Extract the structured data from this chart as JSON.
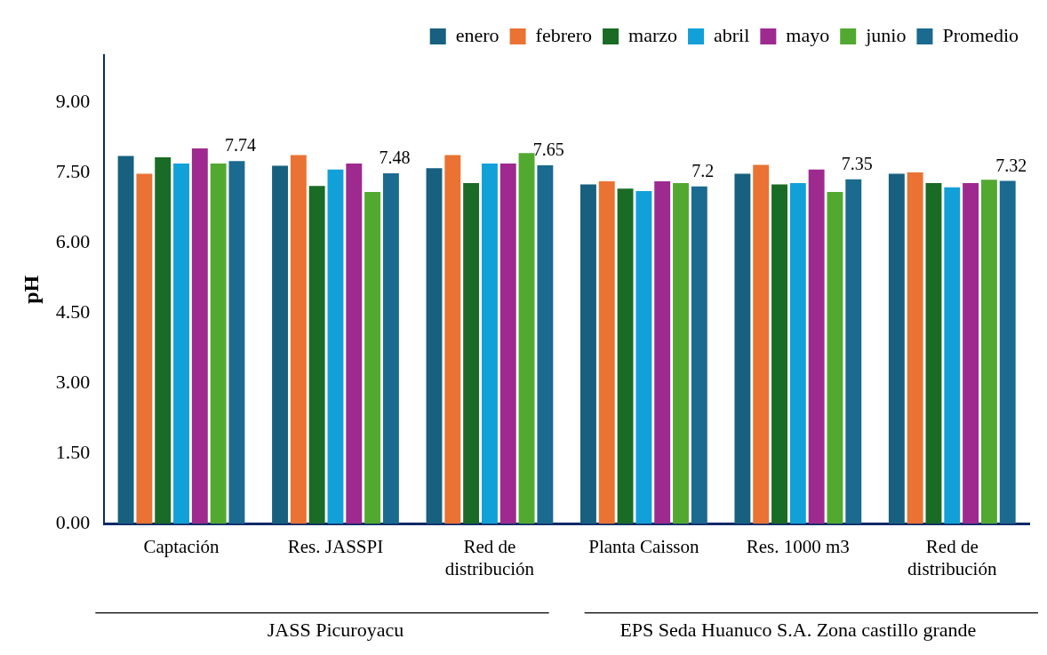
{
  "chart_data": {
    "type": "bar",
    "ylabel": "pH",
    "categories": [
      "Captación",
      "Res. JASSPI",
      "Red de distribución",
      "Planta Caisson",
      "Res. 1000 m3",
      "Red de distribución"
    ],
    "series": [
      {
        "name": "enero",
        "color": "#17607f",
        "values": [
          7.85,
          7.64,
          7.59,
          7.24,
          7.47,
          7.47
        ]
      },
      {
        "name": "febrero",
        "color": "#ea7233",
        "values": [
          7.47,
          7.87,
          7.87,
          7.31,
          7.66,
          7.5
        ]
      },
      {
        "name": "marzo",
        "color": "#1a6b25",
        "values": [
          7.82,
          7.21,
          7.27,
          7.15,
          7.24,
          7.27
        ]
      },
      {
        "name": "abril",
        "color": "#12a0d8",
        "values": [
          7.69,
          7.56,
          7.69,
          7.1,
          7.27,
          7.18
        ]
      },
      {
        "name": "mayo",
        "color": "#9e2a90",
        "values": [
          8.01,
          7.69,
          7.69,
          7.31,
          7.56,
          7.27
        ]
      },
      {
        "name": "junio",
        "color": "#52a930",
        "values": [
          7.69,
          7.08,
          7.91,
          7.27,
          7.08,
          7.34
        ]
      },
      {
        "name": "Promedio",
        "color": "#1b6a8f",
        "values": [
          7.74,
          7.48,
          7.65,
          7.2,
          7.35,
          7.32
        ],
        "value_labels": [
          "7.74",
          "7.48",
          "7.65",
          "7.2",
          "7.35",
          "7.32"
        ]
      }
    ],
    "ylim": [
      0,
      10
    ],
    "yticks": [
      {
        "value": 0,
        "label": "0.00"
      },
      {
        "value": 1.5,
        "label": "1.50"
      },
      {
        "value": 3,
        "label": "3.00"
      },
      {
        "value": 4.5,
        "label": "4.50"
      },
      {
        "value": 6,
        "label": "6.00"
      },
      {
        "value": 7.5,
        "label": "7.50"
      },
      {
        "value": 9,
        "label": "9.00"
      }
    ],
    "grid": false,
    "legend": "top right",
    "annotations": [
      "JASS Picuroyacu",
      "EPS Seda Huanuco S.A. Zona castillo grande"
    ]
  }
}
